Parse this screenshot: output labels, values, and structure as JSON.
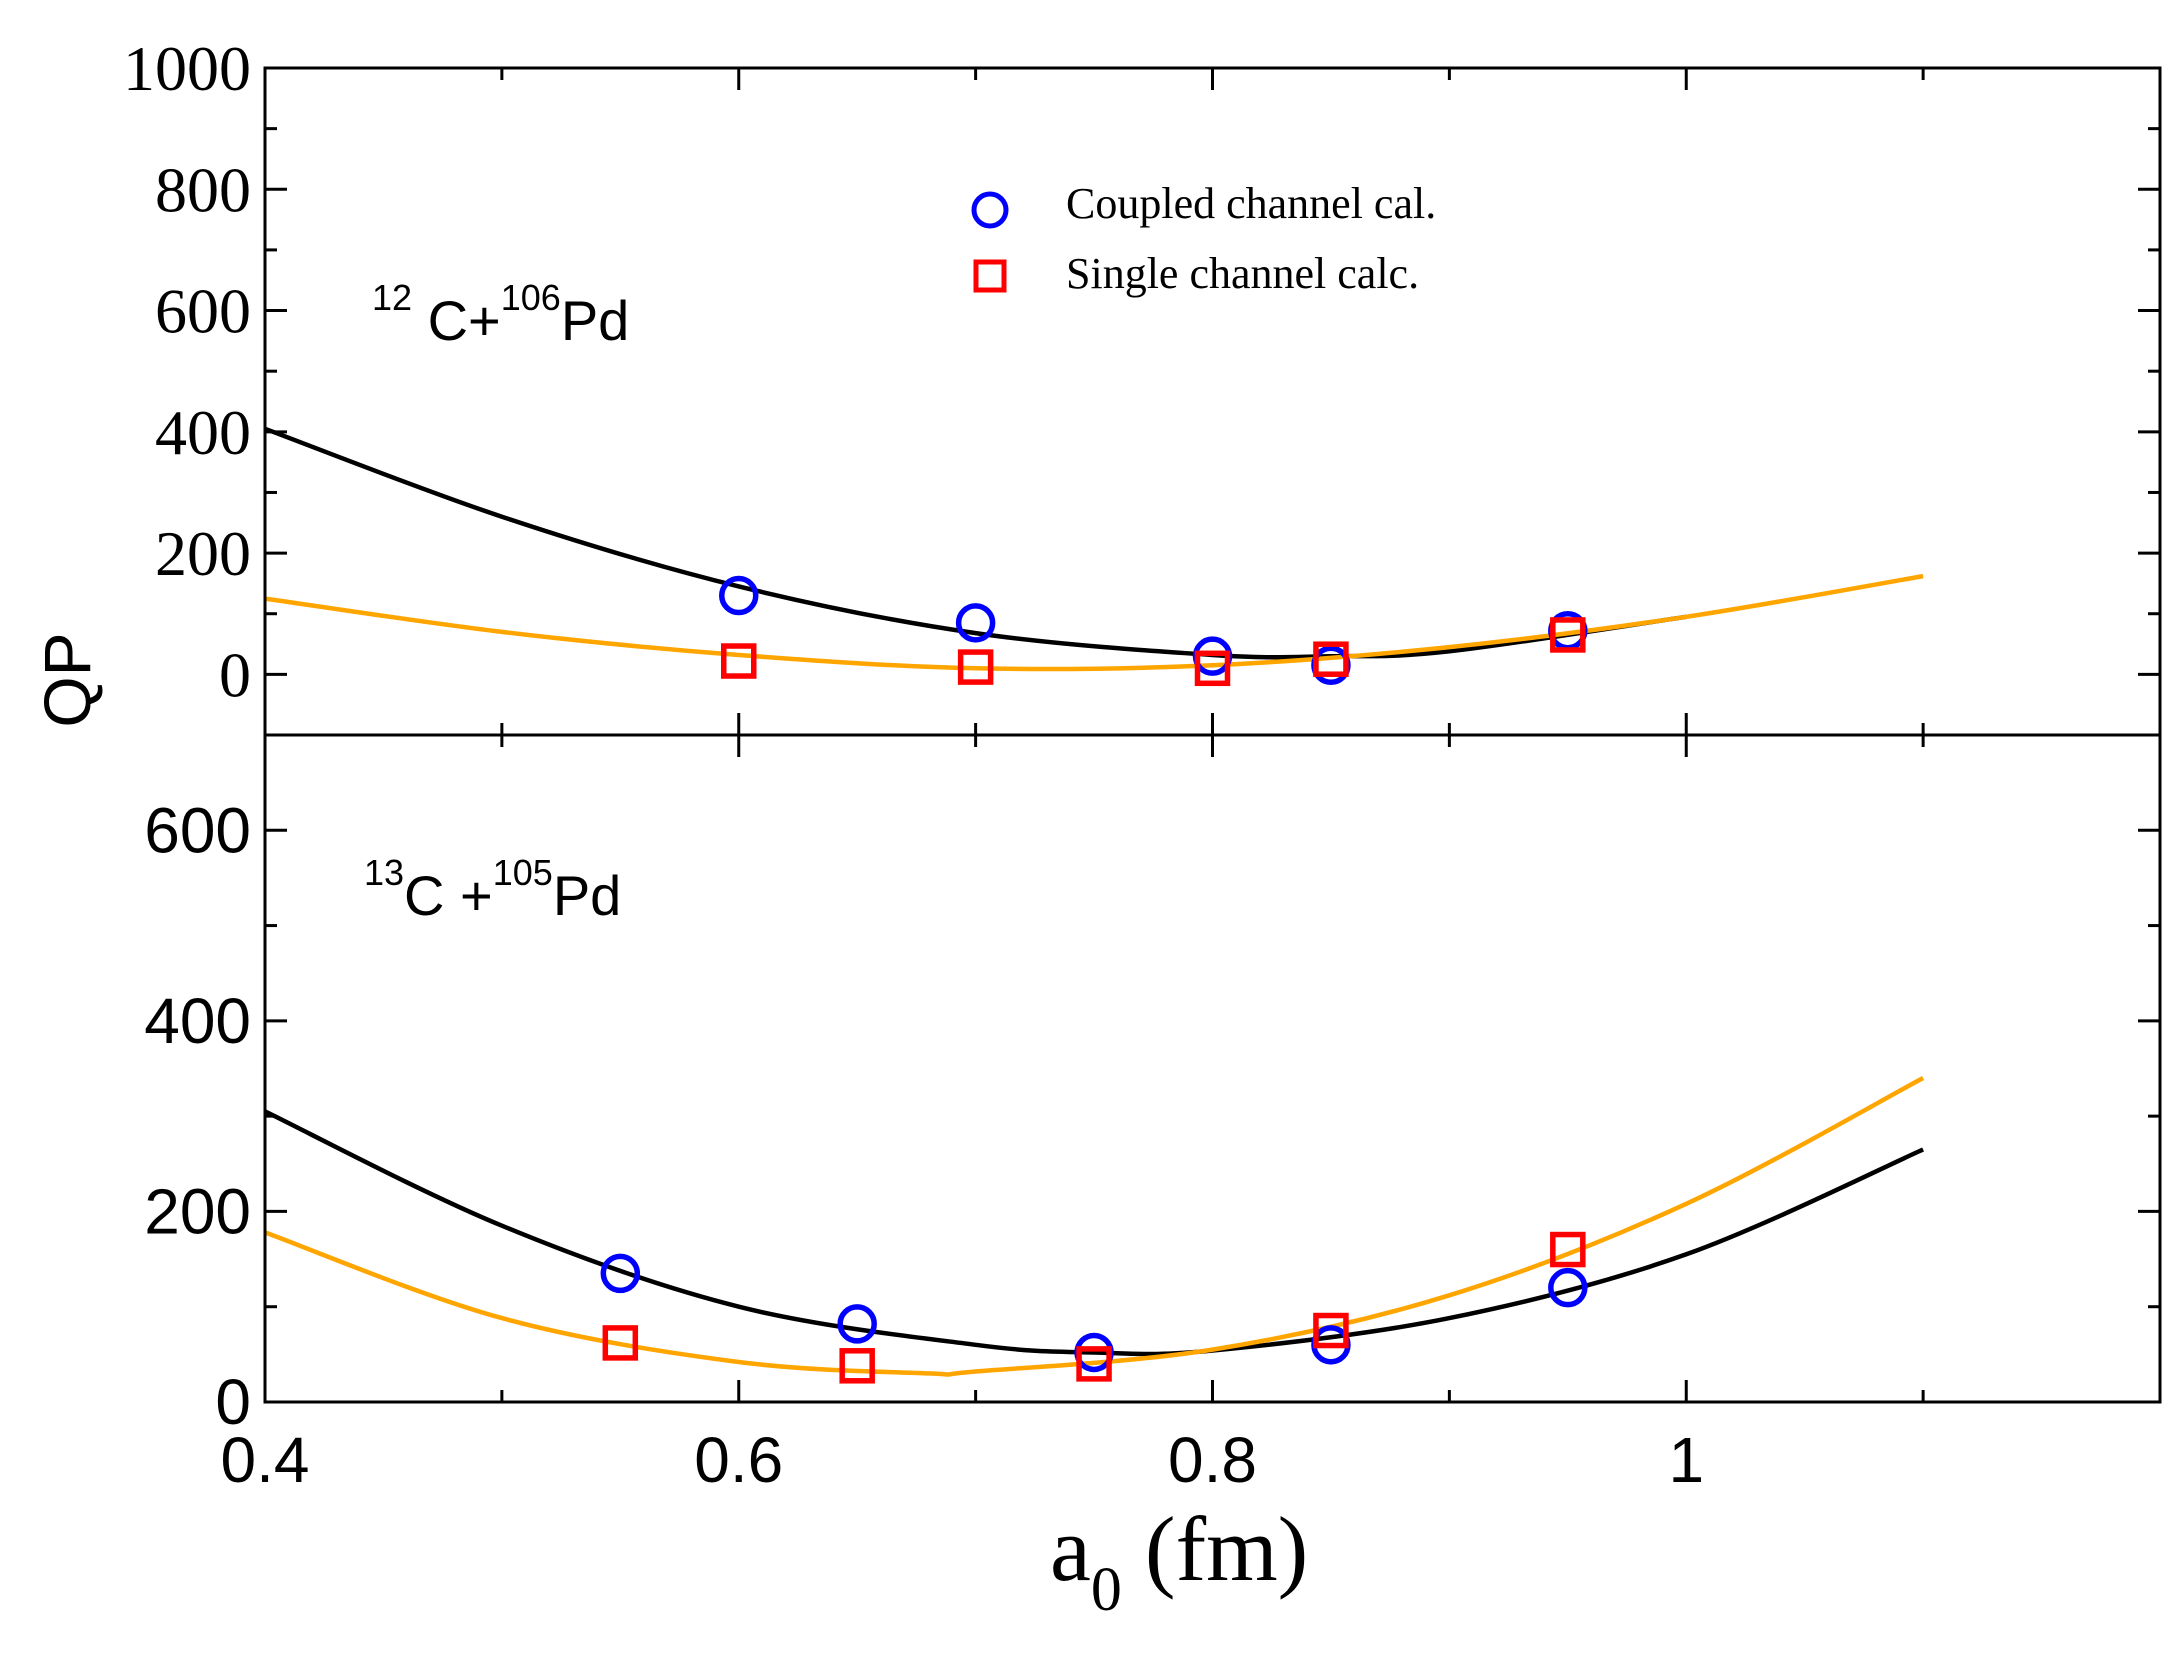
{
  "chart_data": [
    {
      "type": "scatter",
      "annotation": {
        "target": "12",
        "target_rest": " C+",
        "projectile": "106",
        "projectile_rest": "Pd"
      },
      "xlim": [
        0.4,
        1.2
      ],
      "ylim": [
        -100,
        1000
      ],
      "yticks": [
        0,
        200,
        400,
        600,
        800,
        1000
      ],
      "yticklabels": [
        "0",
        "200",
        "400",
        "600",
        "800",
        "1000"
      ],
      "legend": {
        "placement": "top-center",
        "entries": [
          "Coupled channel cal.",
          "Single channel calc."
        ]
      },
      "series": [
        {
          "name": "Coupled channel cal.",
          "marker": "circle",
          "color": "#0000ff",
          "x": [
            0.6,
            0.7,
            0.8,
            0.85,
            0.95
          ],
          "y": [
            130,
            85,
            30,
            15,
            72
          ]
        },
        {
          "name": "Single channel calc.",
          "marker": "square",
          "color": "#ff0000",
          "x": [
            0.6,
            0.7,
            0.8,
            0.85,
            0.95
          ],
          "y": [
            22,
            12,
            10,
            25,
            65
          ]
        }
      ],
      "fits": [
        {
          "color": "#000000",
          "x": [
            0.4,
            0.5,
            0.6,
            0.7,
            0.8,
            0.85,
            0.9,
            1.0
          ],
          "y": [
            405,
            260,
            145,
            68,
            32,
            30,
            38,
            95
          ]
        },
        {
          "color": "#ffa500",
          "x": [
            0.4,
            0.5,
            0.6,
            0.7,
            0.8,
            0.9,
            1.0,
            1.1
          ],
          "y": [
            125,
            70,
            32,
            10,
            15,
            45,
            95,
            162
          ]
        }
      ]
    },
    {
      "type": "scatter",
      "annotation": {
        "target": "13",
        "target_rest": "C +",
        "projectile": "105",
        "projectile_rest": "Pd"
      },
      "xlim": [
        0.4,
        1.2
      ],
      "ylim": [
        0,
        700
      ],
      "yticks": [
        0,
        200,
        400,
        600
      ],
      "yticklabels": [
        "0",
        "200",
        "400",
        "600"
      ],
      "xticks": [
        0.4,
        0.6,
        0.8,
        1.0
      ],
      "xticklabels": [
        "0.4",
        "0.6",
        "0.8",
        "1"
      ],
      "series": [
        {
          "name": "Coupled channel cal.",
          "marker": "circle",
          "color": "#0000ff",
          "x": [
            0.55,
            0.65,
            0.75,
            0.85,
            0.95
          ],
          "y": [
            135,
            82,
            52,
            60,
            120
          ]
        },
        {
          "name": "Single channel calc.",
          "marker": "square",
          "color": "#ff0000",
          "x": [
            0.55,
            0.65,
            0.75,
            0.85,
            0.95
          ],
          "y": [
            62,
            38,
            40,
            75,
            160
          ]
        }
      ],
      "fits": [
        {
          "color": "#000000",
          "x": [
            0.4,
            0.5,
            0.6,
            0.7,
            0.75,
            0.8,
            0.9,
            1.0,
            1.1
          ],
          "y": [
            305,
            185,
            100,
            60,
            52,
            54,
            88,
            155,
            265
          ]
        },
        {
          "color": "#ffa500",
          "x": [
            0.4,
            0.5,
            0.6,
            0.68,
            0.7,
            0.8,
            0.9,
            1.0,
            1.1
          ],
          "y": [
            178,
            88,
            42,
            30,
            32,
            55,
            112,
            208,
            340
          ]
        }
      ]
    }
  ],
  "ylabel": "QP",
  "xlabel": {
    "base": "a",
    "subscript": "0",
    "unit": " (fm)"
  }
}
